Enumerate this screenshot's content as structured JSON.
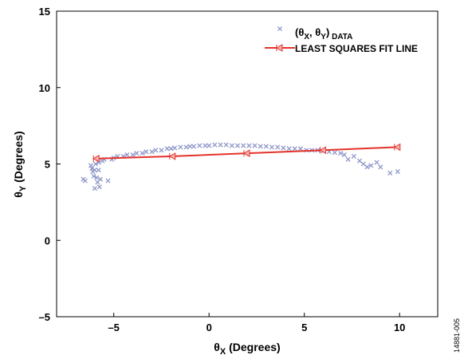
{
  "chart_data": {
    "type": "scatter",
    "title": "",
    "xlabel": {
      "main": "θ",
      "sub": "X",
      "rest": " (Degrees)"
    },
    "ylabel": {
      "main": "θ",
      "sub": "Y",
      "rest": " (Degrees)"
    },
    "xlim": [
      -8,
      12
    ],
    "ylim": [
      -5,
      15
    ],
    "xticks": [
      {
        "v": -5,
        "label": "–5"
      },
      {
        "v": 0,
        "label": "0"
      },
      {
        "v": 5,
        "label": "5"
      },
      {
        "v": 10,
        "label": "10"
      }
    ],
    "yticks": [
      {
        "v": -5,
        "label": "–5"
      },
      {
        "v": 0,
        "label": "0"
      },
      {
        "v": 5,
        "label": "5"
      },
      {
        "v": 10,
        "label": "10"
      },
      {
        "v": 15,
        "label": "15"
      }
    ],
    "grid": false,
    "legend_position": "top-right",
    "series": [
      {
        "name_parts": {
          "open": "(θ",
          "sub1": "X",
          "mid": ", θ",
          "sub2": "Y",
          "close": ")",
          "tail": " DATA"
        },
        "kind": "scatter",
        "color": "#8f97c9",
        "marker": "x",
        "points": [
          [
            -6.6,
            4.0
          ],
          [
            -6.5,
            3.9
          ],
          [
            -6.2,
            4.9
          ],
          [
            -6.15,
            4.7
          ],
          [
            -6.1,
            4.5
          ],
          [
            -6.05,
            4.2
          ],
          [
            -6.0,
            3.4
          ],
          [
            -6.0,
            4.6
          ],
          [
            -5.95,
            5.0
          ],
          [
            -5.9,
            4.1
          ],
          [
            -5.85,
            3.8
          ],
          [
            -5.8,
            4.6
          ],
          [
            -5.8,
            5.1
          ],
          [
            -5.75,
            3.5
          ],
          [
            -5.7,
            4.0
          ],
          [
            -5.6,
            5.2
          ],
          [
            -5.5,
            5.3
          ],
          [
            -5.3,
            3.9
          ],
          [
            -5.1,
            5.3
          ],
          [
            -5.0,
            5.4
          ],
          [
            -4.8,
            5.5
          ],
          [
            -4.5,
            5.5
          ],
          [
            -4.3,
            5.6
          ],
          [
            -4.0,
            5.6
          ],
          [
            -3.8,
            5.7
          ],
          [
            -3.5,
            5.7
          ],
          [
            -3.3,
            5.8
          ],
          [
            -3.0,
            5.8
          ],
          [
            -2.8,
            5.9
          ],
          [
            -2.5,
            5.9
          ],
          [
            -2.2,
            6.0
          ],
          [
            -2.0,
            6.0
          ],
          [
            -1.8,
            6.05
          ],
          [
            -1.5,
            6.1
          ],
          [
            -1.2,
            6.1
          ],
          [
            -1.0,
            6.15
          ],
          [
            -0.8,
            6.15
          ],
          [
            -0.5,
            6.2
          ],
          [
            -0.2,
            6.2
          ],
          [
            0.0,
            6.2
          ],
          [
            0.3,
            6.25
          ],
          [
            0.6,
            6.25
          ],
          [
            0.9,
            6.25
          ],
          [
            1.2,
            6.2
          ],
          [
            1.5,
            6.2
          ],
          [
            1.8,
            6.2
          ],
          [
            2.1,
            6.2
          ],
          [
            2.4,
            6.2
          ],
          [
            2.7,
            6.15
          ],
          [
            3.0,
            6.15
          ],
          [
            3.3,
            6.1
          ],
          [
            3.6,
            6.1
          ],
          [
            3.9,
            6.05
          ],
          [
            4.2,
            6.0
          ],
          [
            4.5,
            6.0
          ],
          [
            4.8,
            6.0
          ],
          [
            5.1,
            5.9
          ],
          [
            5.4,
            5.9
          ],
          [
            5.7,
            5.9
          ],
          [
            6.0,
            5.85
          ],
          [
            6.3,
            5.8
          ],
          [
            6.6,
            5.75
          ],
          [
            6.9,
            5.7
          ],
          [
            7.1,
            5.6
          ],
          [
            7.3,
            5.3
          ],
          [
            7.6,
            5.5
          ],
          [
            7.9,
            5.2
          ],
          [
            8.1,
            5.0
          ],
          [
            8.3,
            4.8
          ],
          [
            8.5,
            4.9
          ],
          [
            8.8,
            5.1
          ],
          [
            9.0,
            4.8
          ],
          [
            9.5,
            4.4
          ],
          [
            9.9,
            4.5
          ]
        ]
      },
      {
        "name": "LEAST SQUARES FIT LINE",
        "kind": "line",
        "color": "#e4322b",
        "marker": "left-triangle",
        "points": [
          [
            -5.9,
            5.35
          ],
          [
            -1.9,
            5.5
          ],
          [
            2.0,
            5.7
          ],
          [
            6.0,
            5.9
          ],
          [
            9.9,
            6.1
          ]
        ]
      }
    ],
    "annotations": [
      {
        "text": "14881-005",
        "position": "right-bottom-vertical"
      }
    ]
  }
}
